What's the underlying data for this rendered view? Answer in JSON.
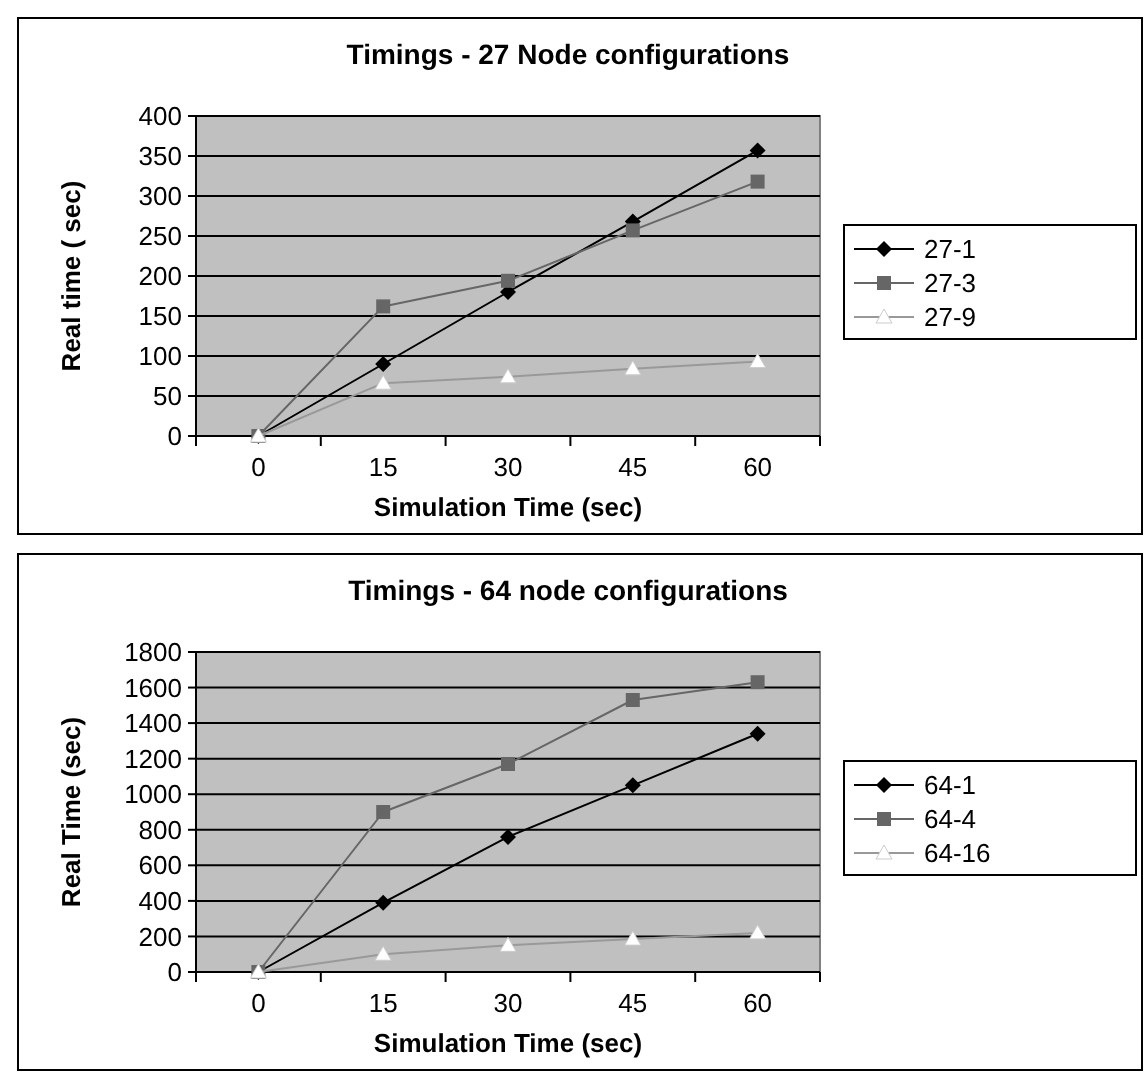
{
  "chart_data": [
    {
      "type": "line",
      "title": "Timings - 27 Node configurations",
      "xlabel": "Simulation Time (sec)",
      "ylabel": "Real time ( sec)",
      "categories": [
        "0",
        "15",
        "30",
        "45",
        "60"
      ],
      "ylim": [
        0,
        400
      ],
      "yticks": [
        0,
        50,
        100,
        150,
        200,
        250,
        300,
        350,
        400
      ],
      "grid": "y",
      "legend": "right",
      "series": [
        {
          "name": "27-1",
          "color": "#000000",
          "marker": "diamond",
          "values": [
            0,
            90,
            180,
            268,
            357
          ]
        },
        {
          "name": "27-3",
          "color": "#666666",
          "marker": "square",
          "values": [
            0,
            162,
            194,
            257,
            318
          ]
        },
        {
          "name": "27-9",
          "color": "#999999",
          "marker": "triangle",
          "values": [
            0,
            66,
            74,
            84,
            93
          ]
        }
      ]
    },
    {
      "type": "line",
      "title": "Timings - 64 node configurations",
      "xlabel": "Simulation Time (sec)",
      "ylabel": "Real Time (sec)",
      "categories": [
        "0",
        "15",
        "30",
        "45",
        "60"
      ],
      "ylim": [
        0,
        1800
      ],
      "yticks": [
        0,
        200,
        400,
        600,
        800,
        1000,
        1200,
        1400,
        1600,
        1800
      ],
      "grid": "y",
      "legend": "right",
      "series": [
        {
          "name": "64-1",
          "color": "#000000",
          "marker": "diamond",
          "values": [
            0,
            390,
            760,
            1050,
            1340
          ]
        },
        {
          "name": "64-4",
          "color": "#666666",
          "marker": "square",
          "values": [
            0,
            900,
            1170,
            1530,
            1630
          ]
        },
        {
          "name": "64-16",
          "color": "#999999",
          "marker": "triangle",
          "values": [
            0,
            100,
            150,
            185,
            220
          ]
        }
      ]
    }
  ]
}
